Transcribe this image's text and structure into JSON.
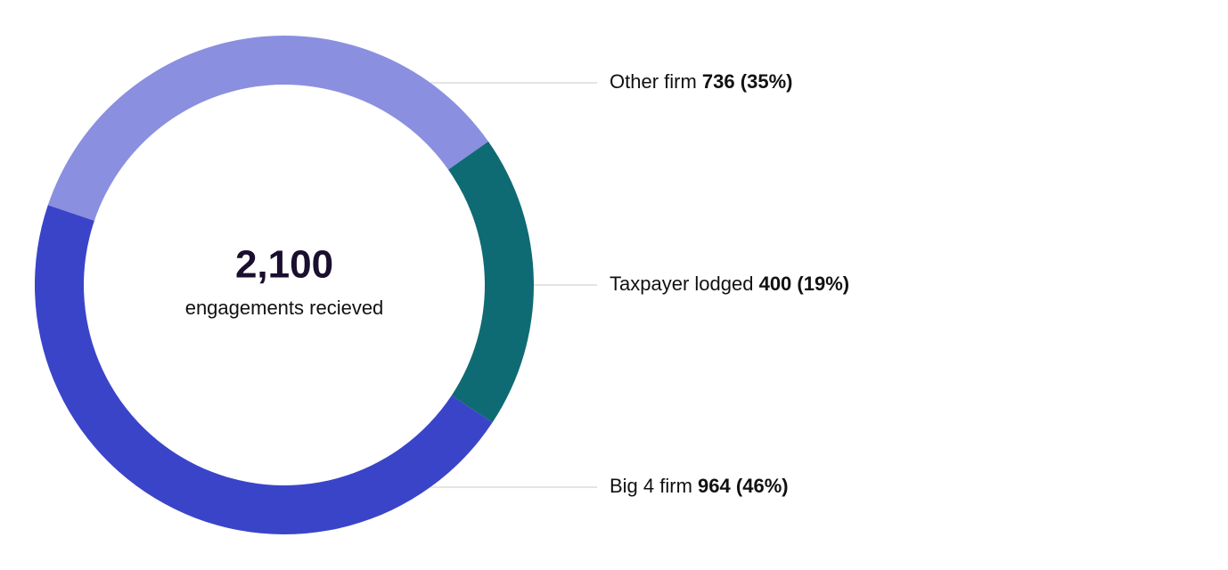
{
  "chart_data": {
    "type": "donut",
    "categories": [
      "Other firm",
      "Taxpayer lodged",
      "Big 4 firm"
    ],
    "values": [
      736,
      400,
      964
    ],
    "percents": [
      35,
      19,
      46
    ],
    "percent_labels": [
      "(35%)",
      "(19%)",
      "(46%)"
    ],
    "colors": [
      "#8a8fe0",
      "#0e6b73",
      "#3a44c9"
    ],
    "total": {
      "value": 2100,
      "label": "2,100"
    },
    "total_caption": "engagements recieved"
  }
}
